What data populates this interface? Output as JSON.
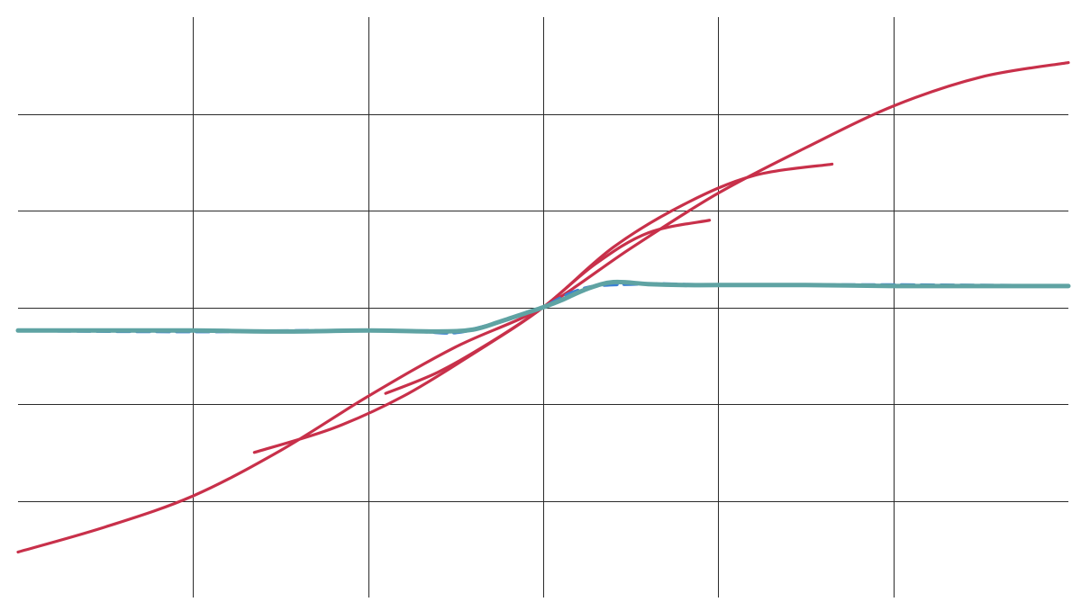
{
  "chart_data": {
    "type": "line",
    "title": "",
    "xlabel": "",
    "ylabel": "",
    "xlim": [
      -3,
      3
    ],
    "ylim": [
      -3,
      3
    ],
    "grid": true,
    "legend": "none",
    "x_gridlines": [
      -2,
      -1,
      0,
      1,
      2
    ],
    "y_gridlines": [
      -2,
      -1,
      0,
      1,
      2
    ],
    "series": [
      {
        "color": "#c8304a",
        "style": "solid",
        "x": [
          -3,
          -2.5,
          -2,
          -1.5,
          -1,
          -0.5,
          0,
          0.5,
          1,
          1.5,
          2,
          2.5,
          3
        ],
        "y": [
          -2.53,
          -2.27,
          -1.95,
          -1.48,
          -0.92,
          -0.41,
          0,
          0.61,
          1.18,
          1.65,
          2.08,
          2.38,
          2.53
        ]
      },
      {
        "color": "#c8304a",
        "style": "solid",
        "x": [
          -1.65,
          -1.2,
          -0.8,
          -0.4,
          0,
          0.4,
          0.8,
          1.2,
          1.65
        ],
        "y": [
          -1.5,
          -1.25,
          -0.92,
          -0.48,
          0,
          0.62,
          1.06,
          1.36,
          1.48
        ]
      },
      {
        "color": "#c8304a",
        "style": "solid",
        "x": [
          -0.9,
          -0.6,
          -0.3,
          0,
          0.3,
          0.6,
          0.95
        ],
        "y": [
          -0.89,
          -0.67,
          -0.36,
          0,
          0.45,
          0.77,
          0.9
        ]
      },
      {
        "color": "#3a7fd4",
        "style": "dashed",
        "x": [
          -3,
          -2,
          -1,
          -0.7,
          -0.5,
          -0.3,
          -0.15,
          0,
          0.15,
          0.3,
          0.5,
          0.7,
          1,
          2,
          3
        ],
        "y": [
          -0.24,
          -0.25,
          -0.24,
          -0.25,
          -0.26,
          -0.18,
          -0.09,
          0,
          0.14,
          0.22,
          0.24,
          0.24,
          0.23,
          0.23,
          0.22
        ]
      },
      {
        "color": "#5fa3a3",
        "style": "solid",
        "x": [
          -3,
          -2.5,
          -2,
          -1.5,
          -1,
          -0.6,
          -0.4,
          -0.25,
          -0.1,
          0,
          0.1,
          0.25,
          0.4,
          0.6,
          0.8,
          1,
          1.5,
          2,
          2.5,
          3
        ],
        "y": [
          -0.24,
          -0.24,
          -0.24,
          -0.25,
          -0.24,
          -0.25,
          -0.23,
          -0.15,
          -0.06,
          0,
          0.07,
          0.19,
          0.26,
          0.24,
          0.23,
          0.23,
          0.23,
          0.22,
          0.22,
          0.22
        ]
      }
    ]
  }
}
